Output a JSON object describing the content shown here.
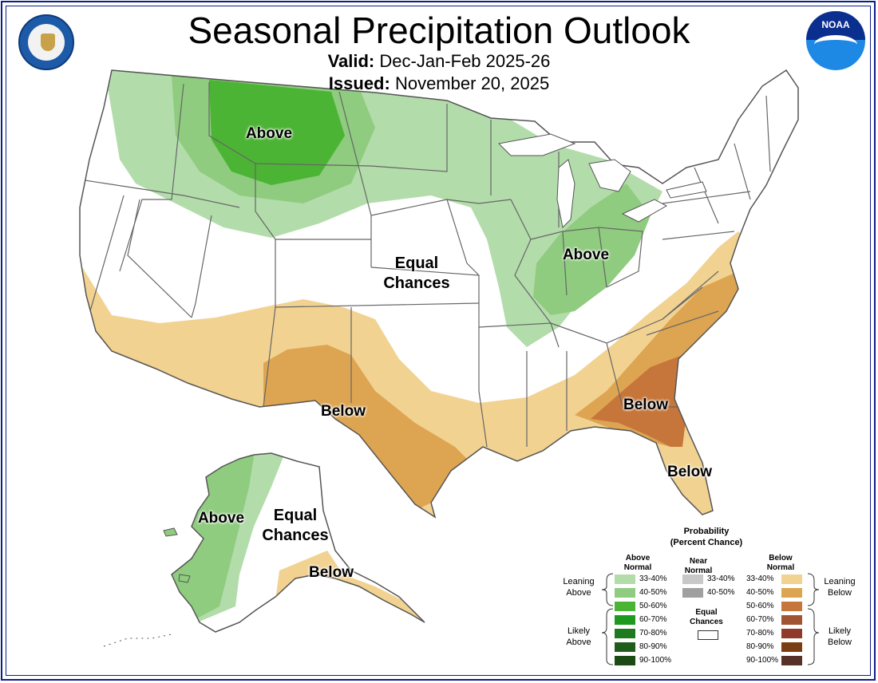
{
  "title": "Seasonal Precipitation Outlook",
  "valid_label": "Valid:",
  "valid_value": "Dec-Jan-Feb 2025-26",
  "issued_label": "Issued:",
  "issued_value": "November 20, 2025",
  "region_labels": {
    "above_northwest": "Above",
    "above_ohio_valley": "Above",
    "equal_chances_central": "Equal Chances",
    "below_southwest": "Below",
    "below_southeast": "Below",
    "below_florida": "Below",
    "above_alaska": "Above",
    "equal_chances_alaska": "Equal Chances",
    "below_alaska": "Below"
  },
  "legend": {
    "heading": "Probability",
    "subheading": "(Percent Chance)",
    "above_header": "Above Normal",
    "near_header": "Near Normal",
    "below_header": "Below Normal",
    "leaning_above": "Leaning Above",
    "likely_above": "Likely Above",
    "leaning_below": "Leaning Below",
    "likely_below": "Likely Below",
    "equal_chances": "Equal Chances",
    "above_ranges": [
      "33-40%",
      "40-50%",
      "50-60%",
      "60-70%",
      "70-80%",
      "80-90%",
      "90-100%"
    ],
    "near_ranges": [
      "33-40%",
      "40-50%"
    ],
    "below_ranges": [
      "33-40%",
      "40-50%",
      "50-60%",
      "60-70%",
      "70-80%",
      "80-90%",
      "90-100%"
    ],
    "above_colors": [
      "#b3dcab",
      "#8fcc7f",
      "#4cb435",
      "#1d9a1d",
      "#1f7a1f",
      "#1e5e1a",
      "#1b4a12"
    ],
    "near_colors": [
      "#c8c8c8",
      "#a0a0a0"
    ],
    "below_colors": [
      "#f2d291",
      "#dda551",
      "#c6763a",
      "#a15432",
      "#8f3a2a",
      "#7a3e12",
      "#573028"
    ]
  },
  "colors": {
    "frame": "#0b1f8a",
    "state_lines": "#666666"
  },
  "icons": {
    "left_logo": "department-of-commerce-seal-icon",
    "right_logo": "noaa-logo-icon"
  }
}
